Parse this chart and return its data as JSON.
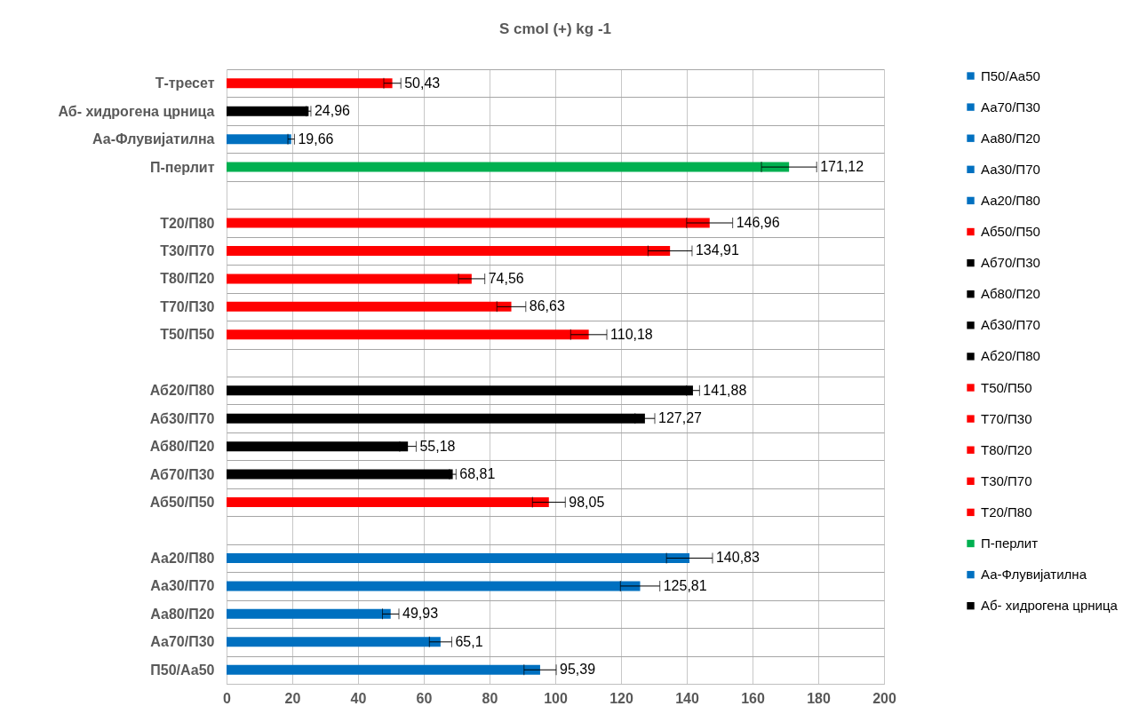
{
  "chart_data": {
    "type": "bar",
    "orientation": "horizontal",
    "title": "S cmol (+) kg -1",
    "categories": [
      "Т-тресет",
      "Аб- хидрогена црница",
      "Аа-Флувијатилна",
      "П-перлит",
      null,
      "Т20/П80",
      "Т30/П70",
      "Т80/П20",
      "Т70/П30",
      "Т50/П50",
      null,
      "Аб20/П80",
      "Аб30/П70",
      "Аб80/П20",
      "Аб70/П30",
      "Аб50/П50",
      null,
      "Аа20/П80",
      "Аа30/П70",
      "Аа80/П20",
      "Аа70/П30",
      "П50/Аа50"
    ],
    "series": [
      {
        "name": "П50/Аа50",
        "color": "#0070c0",
        "values": [
          null,
          null,
          null,
          null,
          null,
          null,
          null,
          null,
          null,
          null,
          null,
          null,
          null,
          null,
          null,
          null,
          null,
          null,
          null,
          null,
          null,
          95.39
        ],
        "errors": [
          null,
          null,
          null,
          null,
          null,
          null,
          null,
          null,
          null,
          null,
          null,
          null,
          null,
          null,
          null,
          null,
          null,
          null,
          null,
          null,
          null,
          4.9
        ]
      },
      {
        "name": "Аа70/П30",
        "color": "#0070c0",
        "values": [
          null,
          null,
          null,
          null,
          null,
          null,
          null,
          null,
          null,
          null,
          null,
          null,
          null,
          null,
          null,
          null,
          null,
          null,
          null,
          null,
          65.1,
          null
        ],
        "errors": [
          null,
          null,
          null,
          null,
          null,
          null,
          null,
          null,
          null,
          null,
          null,
          null,
          null,
          null,
          null,
          null,
          null,
          null,
          null,
          null,
          3.4,
          null
        ]
      },
      {
        "name": "Аа80/П20",
        "color": "#0070c0",
        "values": [
          null,
          null,
          null,
          null,
          null,
          null,
          null,
          null,
          null,
          null,
          null,
          null,
          null,
          null,
          null,
          null,
          null,
          null,
          null,
          49.93,
          null,
          null
        ],
        "errors": [
          null,
          null,
          null,
          null,
          null,
          null,
          null,
          null,
          null,
          null,
          null,
          null,
          null,
          null,
          null,
          null,
          null,
          null,
          null,
          2.5,
          null,
          null
        ]
      },
      {
        "name": "Аа30/П70",
        "color": "#0070c0",
        "values": [
          null,
          null,
          null,
          null,
          null,
          null,
          null,
          null,
          null,
          null,
          null,
          null,
          null,
          null,
          null,
          null,
          null,
          null,
          125.81,
          null,
          null,
          null
        ],
        "errors": [
          null,
          null,
          null,
          null,
          null,
          null,
          null,
          null,
          null,
          null,
          null,
          null,
          null,
          null,
          null,
          null,
          null,
          null,
          6,
          null,
          null,
          null
        ]
      },
      {
        "name": "Аа20/П80",
        "color": "#0070c0",
        "values": [
          null,
          null,
          null,
          null,
          null,
          null,
          null,
          null,
          null,
          null,
          null,
          null,
          null,
          null,
          null,
          null,
          null,
          140.83,
          null,
          null,
          null,
          null
        ],
        "errors": [
          null,
          null,
          null,
          null,
          null,
          null,
          null,
          null,
          null,
          null,
          null,
          null,
          null,
          null,
          null,
          null,
          null,
          7,
          null,
          null,
          null,
          null
        ]
      },
      {
        "name": "Аб50/П50",
        "color": "#ff0000",
        "values": [
          null,
          null,
          null,
          null,
          null,
          null,
          null,
          null,
          null,
          null,
          null,
          null,
          null,
          null,
          null,
          98.05,
          null,
          null,
          null,
          null,
          null,
          null
        ],
        "errors": [
          null,
          null,
          null,
          null,
          null,
          null,
          null,
          null,
          null,
          null,
          null,
          null,
          null,
          null,
          null,
          5,
          null,
          null,
          null,
          null,
          null,
          null
        ]
      },
      {
        "name": "Аб70/П30",
        "color": "#000000",
        "values": [
          null,
          null,
          null,
          null,
          null,
          null,
          null,
          null,
          null,
          null,
          null,
          null,
          null,
          null,
          68.81,
          null,
          null,
          null,
          null,
          null,
          null,
          null
        ],
        "errors": [
          null,
          null,
          null,
          null,
          null,
          null,
          null,
          null,
          null,
          null,
          null,
          null,
          null,
          null,
          1,
          null,
          null,
          null,
          null,
          null,
          null,
          null
        ]
      },
      {
        "name": "Аб80/П20",
        "color": "#000000",
        "values": [
          null,
          null,
          null,
          null,
          null,
          null,
          null,
          null,
          null,
          null,
          null,
          null,
          null,
          55.18,
          null,
          null,
          null,
          null,
          null,
          null,
          null,
          null
        ],
        "errors": [
          null,
          null,
          null,
          null,
          null,
          null,
          null,
          null,
          null,
          null,
          null,
          null,
          null,
          2.5,
          null,
          null,
          null,
          null,
          null,
          null,
          null,
          null
        ]
      },
      {
        "name": "Аб30/П70",
        "color": "#000000",
        "values": [
          null,
          null,
          null,
          null,
          null,
          null,
          null,
          null,
          null,
          null,
          null,
          null,
          127.27,
          null,
          null,
          null,
          null,
          null,
          null,
          null,
          null,
          null
        ],
        "errors": [
          null,
          null,
          null,
          null,
          null,
          null,
          null,
          null,
          null,
          null,
          null,
          null,
          3,
          null,
          null,
          null,
          null,
          null,
          null,
          null,
          null,
          null
        ]
      },
      {
        "name": "Аб20/П80",
        "color": "#000000",
        "values": [
          null,
          null,
          null,
          null,
          null,
          null,
          null,
          null,
          null,
          null,
          null,
          141.88,
          null,
          null,
          null,
          null,
          null,
          null,
          null,
          null,
          null,
          null
        ],
        "errors": [
          null,
          null,
          null,
          null,
          null,
          null,
          null,
          null,
          null,
          null,
          null,
          2,
          null,
          null,
          null,
          null,
          null,
          null,
          null,
          null,
          null,
          null
        ]
      },
      {
        "name": "Т50/П50",
        "color": "#ff0000",
        "values": [
          null,
          null,
          null,
          null,
          null,
          null,
          null,
          null,
          null,
          110.18,
          null,
          null,
          null,
          null,
          null,
          null,
          null,
          null,
          null,
          null,
          null,
          null
        ],
        "errors": [
          null,
          null,
          null,
          null,
          null,
          null,
          null,
          null,
          null,
          5.5,
          null,
          null,
          null,
          null,
          null,
          null,
          null,
          null,
          null,
          null,
          null,
          null
        ]
      },
      {
        "name": "Т70/П30",
        "color": "#ff0000",
        "values": [
          null,
          null,
          null,
          null,
          null,
          null,
          null,
          null,
          86.63,
          null,
          null,
          null,
          null,
          null,
          null,
          null,
          null,
          null,
          null,
          null,
          null,
          null
        ],
        "errors": [
          null,
          null,
          null,
          null,
          null,
          null,
          null,
          null,
          4.4,
          null,
          null,
          null,
          null,
          null,
          null,
          null,
          null,
          null,
          null,
          null,
          null,
          null
        ]
      },
      {
        "name": "Т80/П20",
        "color": "#ff0000",
        "values": [
          null,
          null,
          null,
          null,
          null,
          null,
          null,
          74.56,
          null,
          null,
          null,
          null,
          null,
          null,
          null,
          null,
          null,
          null,
          null,
          null,
          null,
          null
        ],
        "errors": [
          null,
          null,
          null,
          null,
          null,
          null,
          null,
          4,
          null,
          null,
          null,
          null,
          null,
          null,
          null,
          null,
          null,
          null,
          null,
          null,
          null,
          null
        ]
      },
      {
        "name": "Т30/П70",
        "color": "#ff0000",
        "values": [
          null,
          null,
          null,
          null,
          null,
          null,
          134.91,
          null,
          null,
          null,
          null,
          null,
          null,
          null,
          null,
          null,
          null,
          null,
          null,
          null,
          null,
          null
        ],
        "errors": [
          null,
          null,
          null,
          null,
          null,
          null,
          6.7,
          null,
          null,
          null,
          null,
          null,
          null,
          null,
          null,
          null,
          null,
          null,
          null,
          null,
          null,
          null
        ]
      },
      {
        "name": "Т20/П80",
        "color": "#ff0000",
        "values": [
          null,
          null,
          null,
          null,
          null,
          146.96,
          null,
          null,
          null,
          null,
          null,
          null,
          null,
          null,
          null,
          null,
          null,
          null,
          null,
          null,
          null,
          null
        ],
        "errors": [
          null,
          null,
          null,
          null,
          null,
          7,
          null,
          null,
          null,
          null,
          null,
          null,
          null,
          null,
          null,
          null,
          null,
          null,
          null,
          null,
          null,
          null
        ]
      },
      {
        "name": "П-перлит",
        "color": "#00b050",
        "values": [
          null,
          null,
          null,
          171.12,
          null,
          null,
          null,
          null,
          null,
          null,
          null,
          null,
          null,
          null,
          null,
          null,
          null,
          null,
          null,
          null,
          null,
          null
        ],
        "errors": [
          null,
          null,
          null,
          8.4,
          null,
          null,
          null,
          null,
          null,
          null,
          null,
          null,
          null,
          null,
          null,
          null,
          null,
          null,
          null,
          null,
          null,
          null
        ]
      },
      {
        "name": "Аа-Флувијатилна",
        "color": "#0070c0",
        "values": [
          null,
          null,
          19.66,
          null,
          null,
          null,
          null,
          null,
          null,
          null,
          null,
          null,
          null,
          null,
          null,
          null,
          null,
          null,
          null,
          null,
          null,
          null
        ],
        "errors": [
          null,
          null,
          1,
          null,
          null,
          null,
          null,
          null,
          null,
          null,
          null,
          null,
          null,
          null,
          null,
          null,
          null,
          null,
          null,
          null,
          null,
          null
        ]
      },
      {
        "name": "Аб- хидрогена црница",
        "color": "#000000",
        "values": [
          null,
          24.96,
          null,
          null,
          null,
          null,
          null,
          null,
          null,
          null,
          null,
          null,
          null,
          null,
          null,
          null,
          null,
          null,
          null,
          null,
          null,
          null
        ],
        "errors": [
          null,
          0.7,
          null,
          null,
          null,
          null,
          null,
          null,
          null,
          null,
          null,
          null,
          null,
          null,
          null,
          null,
          null,
          null,
          null,
          null,
          null,
          null
        ]
      },
      {
        "color": "#ff0000",
        "values": [
          50.43,
          null,
          null,
          null,
          null,
          null,
          null,
          null,
          null,
          null,
          null,
          null,
          null,
          null,
          null,
          null,
          null,
          null,
          null,
          null,
          null,
          null
        ],
        "errors": [
          2.6,
          null,
          null,
          null,
          null,
          null,
          null,
          null,
          null,
          null,
          null,
          null,
          null,
          null,
          null,
          null,
          null,
          null,
          null,
          null,
          null,
          null
        ]
      }
    ],
    "xlim": [
      0,
      200
    ],
    "xticks": [
      0,
      20,
      40,
      60,
      80,
      100,
      120,
      140,
      160,
      180,
      200
    ],
    "value_labels": [
      "50,43",
      "24,96",
      "19,66",
      "171,12",
      null,
      "146,96",
      "134,91",
      "74,56",
      "86,63",
      "110,18",
      null,
      "141,88",
      "127,27",
      "55,18",
      "68,81",
      "98,05",
      null,
      "140,83",
      "125,81",
      "49,93",
      "65,1",
      "95,39"
    ],
    "grid": true,
    "legend": "right"
  }
}
